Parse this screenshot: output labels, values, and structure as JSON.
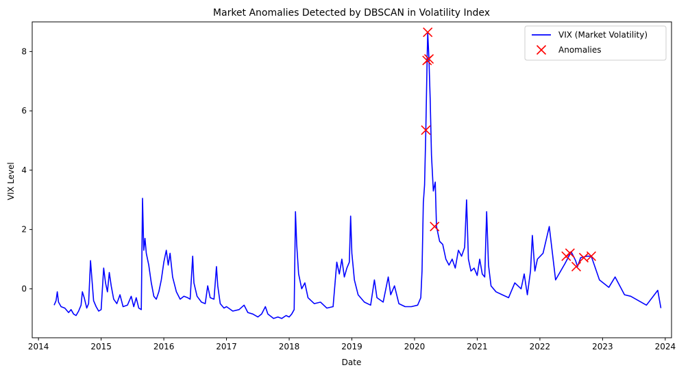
{
  "chart_data": {
    "type": "line",
    "title": "Market Anomalies Detected by DBSCAN in Volatility Index",
    "xlabel": "Date",
    "ylabel": "VIX Level",
    "xlim": [
      2013.9,
      2024.1
    ],
    "ylim": [
      -1.65,
      9.0
    ],
    "x_ticks": [
      2014,
      2015,
      2016,
      2017,
      2018,
      2019,
      2020,
      2021,
      2022,
      2023,
      2024
    ],
    "y_ticks": [
      0,
      2,
      4,
      6,
      8
    ],
    "grid": false,
    "legend": {
      "placement": "top-right",
      "entries": [
        "VIX (Market Volatility)",
        "Anomalies"
      ]
    },
    "colors": {
      "line": "#0000ff",
      "anomaly": "#ff0000"
    },
    "series": [
      {
        "name": "VIX (Market Volatility)",
        "kind": "line",
        "points": [
          [
            2014.25,
            -0.55
          ],
          [
            2014.28,
            -0.4
          ],
          [
            2014.3,
            -0.1
          ],
          [
            2014.32,
            -0.45
          ],
          [
            2014.36,
            -0.6
          ],
          [
            2014.42,
            -0.65
          ],
          [
            2014.48,
            -0.8
          ],
          [
            2014.52,
            -0.7
          ],
          [
            2014.56,
            -0.85
          ],
          [
            2014.6,
            -0.9
          ],
          [
            2014.64,
            -0.75
          ],
          [
            2014.68,
            -0.55
          ],
          [
            2014.7,
            -0.1
          ],
          [
            2014.73,
            -0.3
          ],
          [
            2014.77,
            -0.65
          ],
          [
            2014.8,
            -0.5
          ],
          [
            2014.83,
            0.95
          ],
          [
            2014.85,
            0.4
          ],
          [
            2014.88,
            -0.4
          ],
          [
            2014.92,
            -0.6
          ],
          [
            2014.96,
            -0.75
          ],
          [
            2015.0,
            -0.7
          ],
          [
            2015.04,
            0.7
          ],
          [
            2015.07,
            0.2
          ],
          [
            2015.1,
            -0.1
          ],
          [
            2015.13,
            0.55
          ],
          [
            2015.16,
            0.1
          ],
          [
            2015.2,
            -0.35
          ],
          [
            2015.25,
            -0.5
          ],
          [
            2015.3,
            -0.2
          ],
          [
            2015.35,
            -0.6
          ],
          [
            2015.42,
            -0.55
          ],
          [
            2015.48,
            -0.25
          ],
          [
            2015.52,
            -0.6
          ],
          [
            2015.56,
            -0.3
          ],
          [
            2015.6,
            -0.65
          ],
          [
            2015.64,
            -0.7
          ],
          [
            2015.66,
            3.05
          ],
          [
            2015.68,
            1.3
          ],
          [
            2015.7,
            1.7
          ],
          [
            2015.72,
            1.2
          ],
          [
            2015.76,
            0.8
          ],
          [
            2015.8,
            0.2
          ],
          [
            2015.84,
            -0.25
          ],
          [
            2015.88,
            -0.35
          ],
          [
            2015.92,
            -0.1
          ],
          [
            2015.96,
            0.3
          ],
          [
            2016.0,
            0.9
          ],
          [
            2016.04,
            1.3
          ],
          [
            2016.07,
            0.8
          ],
          [
            2016.1,
            1.2
          ],
          [
            2016.14,
            0.4
          ],
          [
            2016.2,
            -0.1
          ],
          [
            2016.26,
            -0.35
          ],
          [
            2016.32,
            -0.25
          ],
          [
            2016.38,
            -0.3
          ],
          [
            2016.42,
            -0.35
          ],
          [
            2016.46,
            1.1
          ],
          [
            2016.48,
            0.2
          ],
          [
            2016.53,
            -0.25
          ],
          [
            2016.6,
            -0.45
          ],
          [
            2016.66,
            -0.5
          ],
          [
            2016.7,
            0.1
          ],
          [
            2016.74,
            -0.3
          ],
          [
            2016.8,
            -0.35
          ],
          [
            2016.84,
            0.75
          ],
          [
            2016.86,
            0.1
          ],
          [
            2016.9,
            -0.5
          ],
          [
            2016.96,
            -0.65
          ],
          [
            2017.0,
            -0.6
          ],
          [
            2017.1,
            -0.75
          ],
          [
            2017.2,
            -0.7
          ],
          [
            2017.28,
            -0.55
          ],
          [
            2017.34,
            -0.8
          ],
          [
            2017.42,
            -0.85
          ],
          [
            2017.5,
            -0.95
          ],
          [
            2017.56,
            -0.85
          ],
          [
            2017.62,
            -0.6
          ],
          [
            2017.66,
            -0.85
          ],
          [
            2017.75,
            -1.0
          ],
          [
            2017.82,
            -0.95
          ],
          [
            2017.88,
            -1.0
          ],
          [
            2017.95,
            -0.9
          ],
          [
            2018.0,
            -0.95
          ],
          [
            2018.04,
            -0.85
          ],
          [
            2018.08,
            -0.7
          ],
          [
            2018.1,
            2.6
          ],
          [
            2018.12,
            1.5
          ],
          [
            2018.15,
            0.5
          ],
          [
            2018.2,
            0.0
          ],
          [
            2018.25,
            0.2
          ],
          [
            2018.3,
            -0.3
          ],
          [
            2018.4,
            -0.5
          ],
          [
            2018.5,
            -0.45
          ],
          [
            2018.6,
            -0.65
          ],
          [
            2018.7,
            -0.6
          ],
          [
            2018.76,
            0.9
          ],
          [
            2018.8,
            0.5
          ],
          [
            2018.84,
            1.0
          ],
          [
            2018.88,
            0.4
          ],
          [
            2018.92,
            0.7
          ],
          [
            2018.96,
            0.9
          ],
          [
            2018.98,
            2.45
          ],
          [
            2019.0,
            1.2
          ],
          [
            2019.04,
            0.3
          ],
          [
            2019.1,
            -0.2
          ],
          [
            2019.2,
            -0.45
          ],
          [
            2019.3,
            -0.55
          ],
          [
            2019.36,
            0.3
          ],
          [
            2019.4,
            -0.3
          ],
          [
            2019.5,
            -0.45
          ],
          [
            2019.58,
            0.4
          ],
          [
            2019.62,
            -0.2
          ],
          [
            2019.68,
            0.1
          ],
          [
            2019.75,
            -0.5
          ],
          [
            2019.85,
            -0.6
          ],
          [
            2019.95,
            -0.6
          ],
          [
            2020.05,
            -0.55
          ],
          [
            2020.1,
            -0.3
          ],
          [
            2020.12,
            0.6
          ],
          [
            2020.14,
            2.9
          ],
          [
            2020.16,
            3.5
          ],
          [
            2020.18,
            5.3
          ],
          [
            2020.2,
            7.7
          ],
          [
            2020.21,
            8.65
          ],
          [
            2020.23,
            7.75
          ],
          [
            2020.25,
            6.4
          ],
          [
            2020.27,
            4.5
          ],
          [
            2020.3,
            3.3
          ],
          [
            2020.33,
            3.6
          ],
          [
            2020.35,
            2.1
          ],
          [
            2020.4,
            1.6
          ],
          [
            2020.45,
            1.5
          ],
          [
            2020.5,
            1.0
          ],
          [
            2020.55,
            0.8
          ],
          [
            2020.6,
            1.0
          ],
          [
            2020.65,
            0.7
          ],
          [
            2020.7,
            1.3
          ],
          [
            2020.75,
            1.1
          ],
          [
            2020.8,
            1.4
          ],
          [
            2020.83,
            3.0
          ],
          [
            2020.86,
            1.0
          ],
          [
            2020.9,
            0.6
          ],
          [
            2020.95,
            0.7
          ],
          [
            2021.0,
            0.45
          ],
          [
            2021.04,
            1.0
          ],
          [
            2021.08,
            0.5
          ],
          [
            2021.12,
            0.4
          ],
          [
            2021.15,
            2.6
          ],
          [
            2021.18,
            0.8
          ],
          [
            2021.22,
            0.1
          ],
          [
            2021.3,
            -0.1
          ],
          [
            2021.4,
            -0.2
          ],
          [
            2021.5,
            -0.3
          ],
          [
            2021.6,
            0.2
          ],
          [
            2021.7,
            0.0
          ],
          [
            2021.75,
            0.5
          ],
          [
            2021.8,
            -0.2
          ],
          [
            2021.85,
            0.6
          ],
          [
            2021.88,
            1.8
          ],
          [
            2021.92,
            0.6
          ],
          [
            2021.96,
            1.0
          ],
          [
            2022.05,
            1.2
          ],
          [
            2022.15,
            2.1
          ],
          [
            2022.25,
            0.3
          ],
          [
            2022.4,
            0.85
          ],
          [
            2022.5,
            1.25
          ],
          [
            2022.57,
            0.95
          ],
          [
            2022.6,
            0.75
          ],
          [
            2022.65,
            1.05
          ],
          [
            2022.75,
            1.1
          ],
          [
            2022.82,
            1.1
          ],
          [
            2022.95,
            0.3
          ],
          [
            2023.1,
            0.05
          ],
          [
            2023.2,
            0.4
          ],
          [
            2023.35,
            -0.2
          ],
          [
            2023.45,
            -0.25
          ],
          [
            2023.7,
            -0.55
          ],
          [
            2023.88,
            -0.05
          ],
          [
            2023.93,
            -0.65
          ]
        ]
      },
      {
        "name": "Anomalies",
        "kind": "scatter",
        "points": [
          [
            2020.21,
            8.65
          ],
          [
            2020.2,
            7.7
          ],
          [
            2020.23,
            7.75
          ],
          [
            2020.18,
            5.35
          ],
          [
            2020.32,
            2.1
          ],
          [
            2022.42,
            1.1
          ],
          [
            2022.48,
            1.2
          ],
          [
            2022.58,
            0.75
          ],
          [
            2022.7,
            1.05
          ],
          [
            2022.82,
            1.1
          ]
        ]
      }
    ]
  }
}
